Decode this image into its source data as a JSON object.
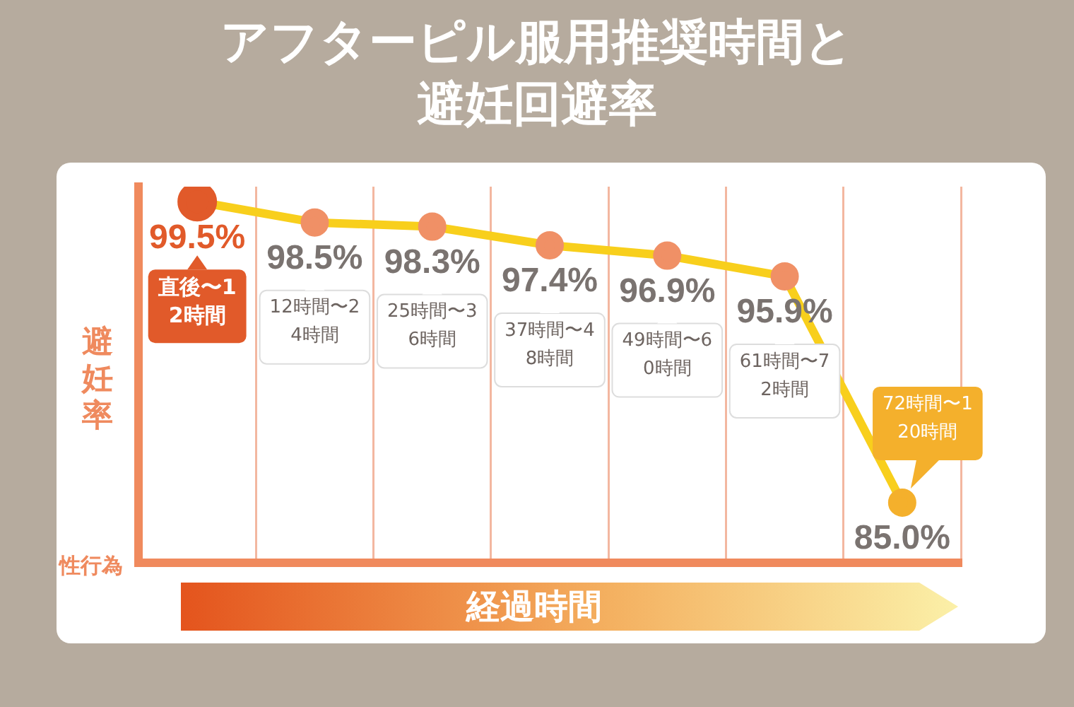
{
  "chart_data": {
    "type": "line",
    "title": "アフターピル服用推奨時間と避妊回避率",
    "ylabel": "避妊率",
    "xlabel": "経過時間",
    "annotations": [
      "性行為"
    ],
    "categories": [
      "直後〜12時間",
      "12時間〜24時間",
      "25時間〜36時間",
      "37時間〜48時間",
      "49時間〜60時間",
      "61時間〜72時間",
      "72時間〜120時間"
    ],
    "series": [
      {
        "color": "#f8cf1c",
        "colors": [
          "#e15a2a",
          "#f09066",
          "#f09066",
          "#f09066",
          "#f09066",
          "#f09066",
          "#f4b02c"
        ],
        "values": [
          99.5,
          98.5,
          98.3,
          97.4,
          96.9,
          95.9,
          85.0
        ],
        "value_labels": [
          "99.5%",
          "98.5%",
          "98.3%",
          "97.4%",
          "96.9%",
          "95.9%",
          "85.0%"
        ]
      }
    ],
    "grid": "x",
    "marker": "circle",
    "line_style": "solid",
    "legend": false
  }
}
